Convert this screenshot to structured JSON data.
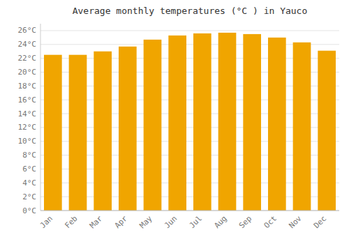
{
  "chart_data": {
    "type": "bar",
    "title": "Average monthly temperatures (°C ) in Yauco",
    "categories": [
      "Jan",
      "Feb",
      "Mar",
      "Apr",
      "May",
      "Jun",
      "Jul",
      "Aug",
      "Sep",
      "Oct",
      "Nov",
      "Dec"
    ],
    "values": [
      22.5,
      22.5,
      23.0,
      23.7,
      24.7,
      25.3,
      25.6,
      25.7,
      25.5,
      25.0,
      24.3,
      23.1
    ],
    "color": "#F0A500",
    "ylim": [
      0,
      27
    ],
    "yticks": [
      {
        "value": 0,
        "label": "0°C"
      },
      {
        "value": 2,
        "label": "2°C"
      },
      {
        "value": 4,
        "label": "4°C"
      },
      {
        "value": 6,
        "label": "6°C"
      },
      {
        "value": 8,
        "label": "8°C"
      },
      {
        "value": 10,
        "label": "10°C"
      },
      {
        "value": 12,
        "label": "12°C"
      },
      {
        "value": 14,
        "label": "14°C"
      },
      {
        "value": 16,
        "label": "16°C"
      },
      {
        "value": 18,
        "label": "18°C"
      },
      {
        "value": 20,
        "label": "20°C"
      },
      {
        "value": 22,
        "label": "22°C"
      },
      {
        "value": 24,
        "label": "24°C"
      },
      {
        "value": 26,
        "label": "26°C"
      }
    ],
    "grid": true
  }
}
